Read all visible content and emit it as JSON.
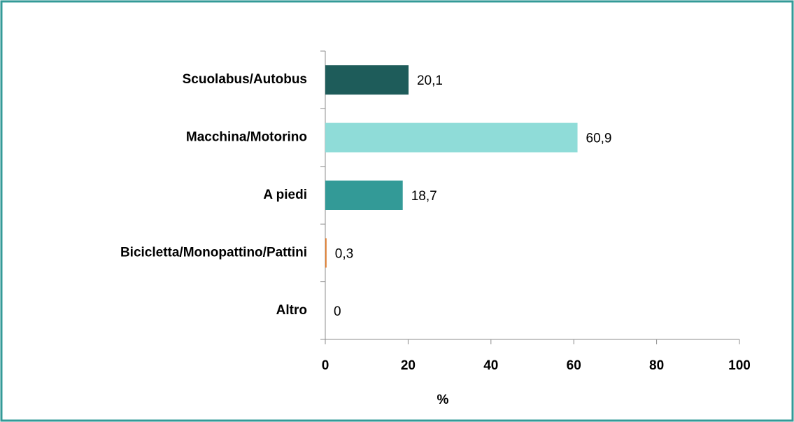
{
  "chart_data": {
    "type": "hbar",
    "categories": [
      "Scuolabus/Autobus",
      "Macchina/Motorino",
      "A piedi",
      "Bicicletta/Monopattino/Pattini",
      "Altro"
    ],
    "values": [
      20.1,
      60.9,
      18.7,
      0.3,
      0
    ],
    "value_labels": [
      "20,1",
      "60,9",
      "18,7",
      "0,3",
      "0"
    ],
    "colors": [
      "#1e5c5a",
      "#8fdcd8",
      "#339a97",
      "#e07b2b",
      "#7f7f7f"
    ],
    "xlabel": "%",
    "xlim": [
      0,
      100
    ],
    "xticks": [
      0,
      20,
      40,
      60,
      80,
      100
    ],
    "grid": false
  }
}
